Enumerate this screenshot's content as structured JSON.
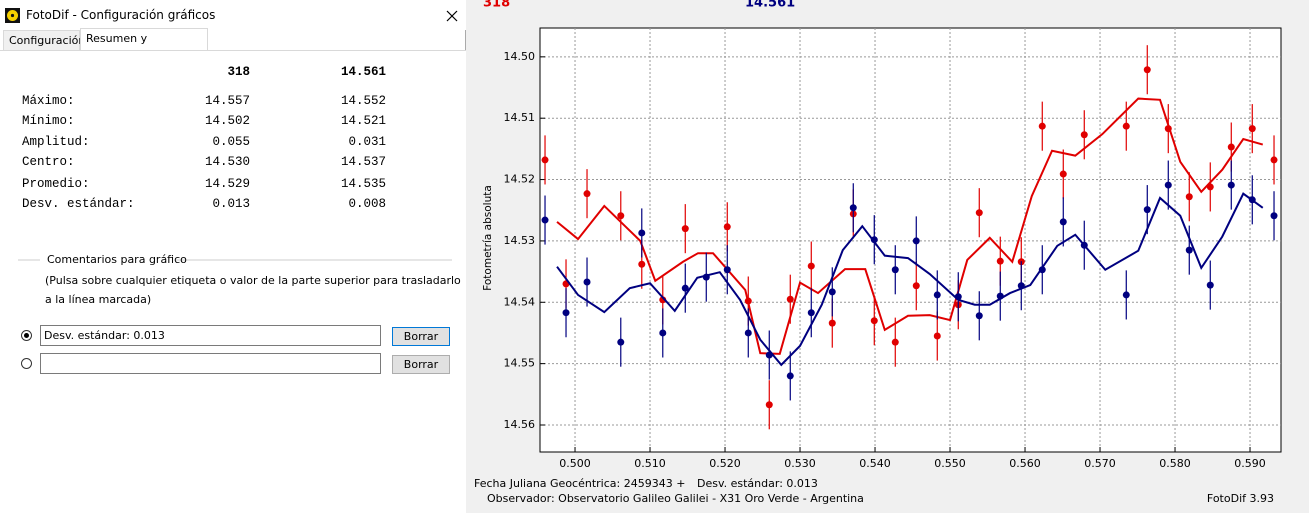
{
  "dialog": {
    "title": "FotoDif - Configuración gráficos",
    "tabs": [
      {
        "label": "Configuración",
        "selected": false
      },
      {
        "label": "Resumen y comentarios",
        "selected": true
      }
    ],
    "summary": {
      "header": [
        "318",
        "14.561"
      ],
      "rows": [
        [
          "Máximo:",
          "14.557",
          "14.552"
        ],
        [
          "Mínimo:",
          "14.502",
          "14.521"
        ],
        [
          "Amplitud:",
          "0.055",
          "0.031"
        ],
        [
          "Centro:",
          "14.530",
          "14.537"
        ],
        [
          "Promedio:",
          "14.529",
          "14.535"
        ],
        [
          "Desv. estándar:",
          "0.013",
          "0.008"
        ]
      ]
    },
    "comments": {
      "group_label": "Comentarios para gráfico",
      "help": [
        "(Pulsa sobre cualquier etiqueta o valor de la parte superior para trasladarlo",
        "a la línea marcada)"
      ],
      "rows": [
        {
          "text": "Desv. estándar: 0.013",
          "button": "Borrar",
          "selected": true
        },
        {
          "button": "Borrar",
          "selected": false
        }
      ]
    }
  },
  "chart_data": {
    "type": "scatter",
    "ylabel": "Fotometría absoluta",
    "xlim": [
      0.49533,
      0.59413
    ],
    "ylim": [
      14.4953,
      14.5644
    ],
    "y_inverted": true,
    "grid": true,
    "xticks": [
      {
        "value": 0.5,
        "label": "0.500"
      },
      {
        "value": 0.51,
        "label": "0.510"
      },
      {
        "value": 0.52,
        "label": "0.520"
      },
      {
        "value": 0.53,
        "label": "0.530"
      },
      {
        "value": 0.54,
        "label": "0.540"
      },
      {
        "value": 0.55,
        "label": "0.550"
      },
      {
        "value": 0.56,
        "label": "0.560"
      },
      {
        "value": 0.57,
        "label": "0.570"
      },
      {
        "value": 0.58,
        "label": "0.580"
      },
      {
        "value": 0.59,
        "label": "0.590"
      }
    ],
    "yticks": [
      {
        "value": 14.5,
        "label": "14.50"
      },
      14.51,
      14.52,
      14.53,
      14.54,
      14.55,
      14.56
    ],
    "series": [
      {
        "name": "318",
        "color": "#e00000",
        "error": 0.004,
        "x": [
          0.496,
          0.4988,
          0.5016,
          0.5061,
          0.5089,
          0.5117,
          0.5147,
          0.5203,
          0.5231,
          0.5259,
          0.5287,
          0.5315,
          0.5343,
          0.5371,
          0.5399,
          0.5427,
          0.5455,
          0.5483,
          0.5511,
          0.5539,
          0.5567,
          0.5595,
          0.5623,
          0.5651,
          0.5679,
          0.5735,
          0.5763,
          0.5791,
          0.5819,
          0.5847,
          0.5875,
          0.5903,
          0.5932
        ],
        "values": [
          14.5168,
          14.537,
          14.5223,
          14.5259,
          14.5338,
          14.5396,
          14.528,
          14.5277,
          14.5398,
          14.5567,
          14.5395,
          14.5341,
          14.5434,
          14.5256,
          14.543,
          14.5465,
          14.5373,
          14.5455,
          14.5404,
          14.5254,
          14.5333,
          14.5334,
          14.5113,
          14.5191,
          14.5127,
          14.5113,
          14.5021,
          14.5117,
          14.5228,
          14.5212,
          14.5147,
          14.5117,
          14.5168
        ],
        "trend": {
          "x": [
            0.4976,
            0.5004,
            0.5039,
            0.5087,
            0.5107,
            0.5144,
            0.5164,
            0.5184,
            0.5227,
            0.5247,
            0.5273,
            0.53,
            0.5324,
            0.536,
            0.5387,
            0.5413,
            0.5444,
            0.5473,
            0.55,
            0.5523,
            0.5553,
            0.5583,
            0.5609,
            0.5636,
            0.5667,
            0.5703,
            0.5751,
            0.578,
            0.5807,
            0.5835,
            0.5863,
            0.5891,
            0.5917
          ],
          "values": [
            14.5269,
            14.5297,
            14.5243,
            14.53,
            14.5365,
            14.5334,
            14.532,
            14.532,
            14.538,
            14.5483,
            14.5484,
            14.5368,
            14.5385,
            14.5346,
            14.5346,
            14.5445,
            14.5422,
            14.5421,
            14.5429,
            14.5331,
            14.5295,
            14.5334,
            14.5227,
            14.5153,
            14.5161,
            14.5126,
            14.5068,
            14.507,
            14.5171,
            14.522,
            14.5184,
            14.5134,
            14.5143
          ]
        }
      },
      {
        "name": "14.561",
        "color": "#000080",
        "error": 0.004,
        "x": [
          0.496,
          0.4988,
          0.5016,
          0.5061,
          0.5089,
          0.5117,
          0.5147,
          0.5175,
          0.5203,
          0.5231,
          0.5259,
          0.5287,
          0.5315,
          0.5343,
          0.5371,
          0.5399,
          0.5427,
          0.5455,
          0.5483,
          0.5511,
          0.5539,
          0.5567,
          0.5595,
          0.5623,
          0.5651,
          0.5679,
          0.5735,
          0.5763,
          0.5791,
          0.5819,
          0.5847,
          0.5875,
          0.5903,
          0.5932
        ],
        "values": [
          14.5266,
          14.5417,
          14.5367,
          14.5465,
          14.5287,
          14.545,
          14.5377,
          14.5359,
          14.5347,
          14.545,
          14.5486,
          14.552,
          14.5417,
          14.5383,
          14.5246,
          14.5298,
          14.5347,
          14.53,
          14.5388,
          14.5391,
          14.5422,
          14.539,
          14.5373,
          14.5347,
          14.5269,
          14.5307,
          14.5388,
          14.5249,
          14.5209,
          14.5315,
          14.5372,
          14.5209,
          14.5233,
          14.5259
        ],
        "trend": {
          "x": [
            0.4976,
            0.5004,
            0.5039,
            0.5073,
            0.51,
            0.5133,
            0.5163,
            0.5193,
            0.522,
            0.5247,
            0.5275,
            0.53,
            0.5329,
            0.5357,
            0.5383,
            0.5413,
            0.5444,
            0.5473,
            0.5511,
            0.5533,
            0.5553,
            0.558,
            0.5607,
            0.5643,
            0.5667,
            0.5707,
            0.5751,
            0.578,
            0.5807,
            0.5835,
            0.5863,
            0.5891,
            0.5917
          ],
          "values": [
            14.5342,
            14.5388,
            14.5416,
            14.5377,
            14.5369,
            14.5414,
            14.536,
            14.5351,
            14.5396,
            14.5461,
            14.5502,
            14.5471,
            14.5404,
            14.5315,
            14.5276,
            14.5324,
            14.5328,
            14.5354,
            14.5396,
            14.5404,
            14.5404,
            14.5385,
            14.5372,
            14.5308,
            14.529,
            14.5347,
            14.5316,
            14.523,
            14.5259,
            14.5344,
            14.5293,
            14.5223,
            14.5246
          ]
        }
      }
    ],
    "footer": {
      "date": "Fecha Juliana Geocéntrica: 2459343 +",
      "stdev": "Desv. estándar: 0.013",
      "observer": "Observador: Observatorio Galileo Galilei - X31 Oro Verde - Argentina",
      "software": "FotoDif 3.93"
    }
  }
}
